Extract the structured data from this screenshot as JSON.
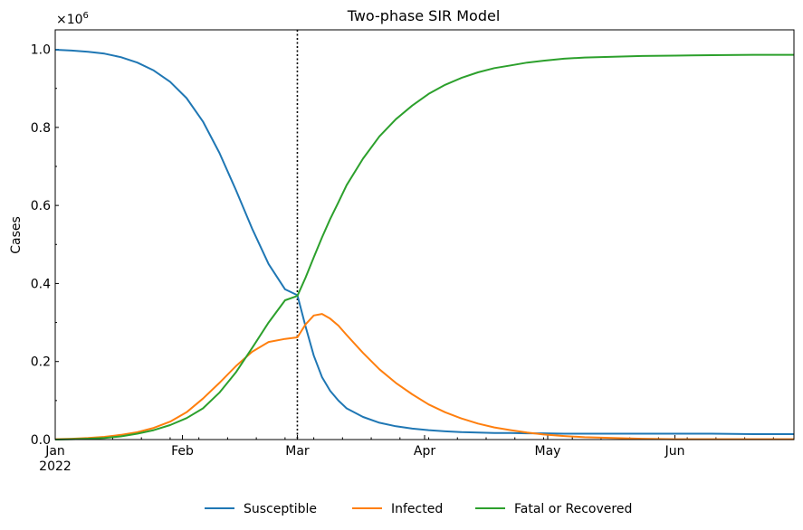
{
  "chart_data": {
    "type": "line",
    "title": "Two-phase SIR Model",
    "ylabel": "Cases",
    "xlabel": "",
    "scale_label_base": "×10",
    "scale_label_exp": "6",
    "x_start": "2022-01-01",
    "x_end": "2022-06-30",
    "ylim": [
      0,
      1.05
    ],
    "ytick_values": [
      0.0,
      0.2,
      0.4,
      0.6,
      0.8,
      1.0
    ],
    "ytick_labels": [
      "0.0",
      "0.2",
      "0.4",
      "0.6",
      "0.8",
      "1.0"
    ],
    "xtick_dates": [
      "2022-01-01",
      "2022-02-01",
      "2022-03-01",
      "2022-04-01",
      "2022-05-01",
      "2022-06-01"
    ],
    "xtick_labels": [
      "Jan",
      "Feb",
      "Mar",
      "Apr",
      "May",
      "Jun"
    ],
    "xtick_year_label": "2022",
    "phase_change_date": "2022-03-01",
    "legend_position": "bottom-center",
    "grid": false,
    "x": [
      "2022-01-01",
      "2022-01-05",
      "2022-01-09",
      "2022-01-13",
      "2022-01-17",
      "2022-01-21",
      "2022-01-25",
      "2022-01-29",
      "2022-02-02",
      "2022-02-06",
      "2022-02-10",
      "2022-02-14",
      "2022-02-18",
      "2022-02-22",
      "2022-02-26",
      "2022-03-01",
      "2022-03-03",
      "2022-03-05",
      "2022-03-07",
      "2022-03-09",
      "2022-03-11",
      "2022-03-13",
      "2022-03-17",
      "2022-03-21",
      "2022-03-25",
      "2022-03-29",
      "2022-04-02",
      "2022-04-06",
      "2022-04-10",
      "2022-04-14",
      "2022-04-18",
      "2022-04-22",
      "2022-04-26",
      "2022-04-30",
      "2022-05-05",
      "2022-05-10",
      "2022-05-17",
      "2022-05-24",
      "2022-06-01",
      "2022-06-10",
      "2022-06-20",
      "2022-06-30"
    ],
    "series": [
      {
        "name": "Susceptible",
        "color": "#1f77b4",
        "values": [
          0.999,
          0.997,
          0.994,
          0.989,
          0.98,
          0.966,
          0.946,
          0.917,
          0.875,
          0.815,
          0.735,
          0.64,
          0.54,
          0.45,
          0.385,
          0.37,
          0.29,
          0.215,
          0.16,
          0.125,
          0.1,
          0.08,
          0.058,
          0.043,
          0.034,
          0.028,
          0.024,
          0.021,
          0.019,
          0.018,
          0.017,
          0.017,
          0.016,
          0.016,
          0.015,
          0.015,
          0.015,
          0.015,
          0.015,
          0.015,
          0.014,
          0.014
        ]
      },
      {
        "name": "Infected",
        "color": "#ff7f0e",
        "values": [
          0.001,
          0.002,
          0.004,
          0.007,
          0.012,
          0.019,
          0.03,
          0.046,
          0.07,
          0.105,
          0.145,
          0.188,
          0.225,
          0.25,
          0.258,
          0.262,
          0.295,
          0.318,
          0.322,
          0.31,
          0.292,
          0.268,
          0.222,
          0.18,
          0.145,
          0.116,
          0.09,
          0.07,
          0.054,
          0.041,
          0.031,
          0.024,
          0.018,
          0.013,
          0.009,
          0.006,
          0.004,
          0.002,
          0.001,
          0.001,
          0.001,
          0.001
        ]
      },
      {
        "name": "Fatal or Recovered",
        "color": "#2ca02c",
        "values": [
          0.0,
          0.001,
          0.002,
          0.004,
          0.008,
          0.015,
          0.024,
          0.037,
          0.055,
          0.08,
          0.12,
          0.172,
          0.235,
          0.3,
          0.357,
          0.368,
          0.415,
          0.467,
          0.518,
          0.565,
          0.608,
          0.652,
          0.72,
          0.777,
          0.821,
          0.856,
          0.886,
          0.909,
          0.927,
          0.941,
          0.952,
          0.959,
          0.966,
          0.971,
          0.976,
          0.979,
          0.981,
          0.983,
          0.984,
          0.985,
          0.986,
          0.986
        ]
      }
    ]
  }
}
